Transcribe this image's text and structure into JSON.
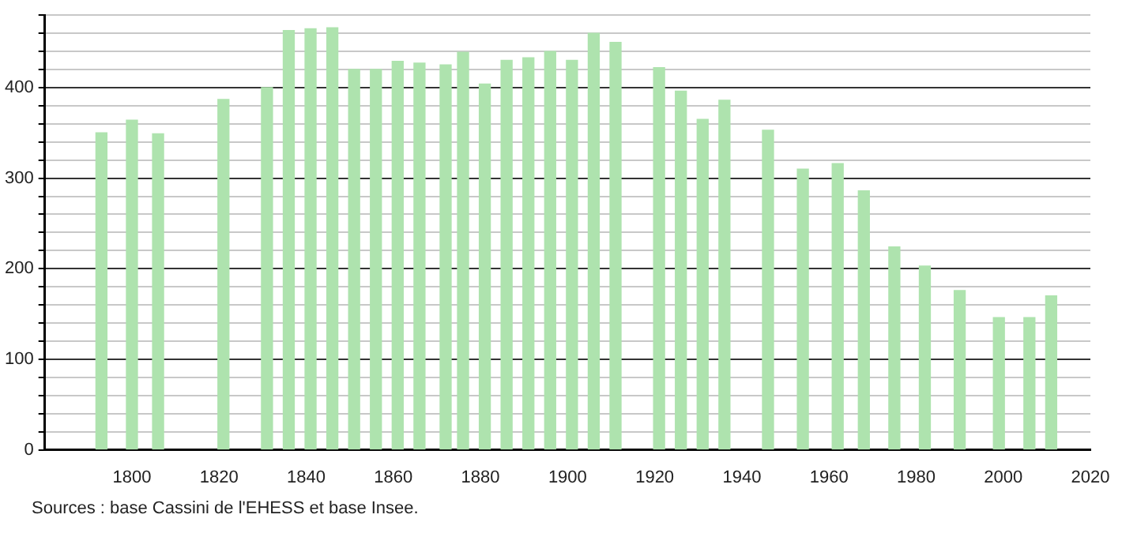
{
  "chart_data": {
    "type": "bar",
    "x": [
      1793,
      1800,
      1806,
      1821,
      1831,
      1836,
      1841,
      1846,
      1851,
      1856,
      1861,
      1866,
      1872,
      1876,
      1881,
      1886,
      1891,
      1896,
      1901,
      1906,
      1911,
      1921,
      1926,
      1931,
      1936,
      1946,
      1954,
      1962,
      1968,
      1975,
      1982,
      1990,
      1999,
      2006,
      2011
    ],
    "values": [
      350,
      364,
      349,
      387,
      400,
      463,
      465,
      466,
      420,
      420,
      429,
      427,
      425,
      439,
      404,
      430,
      433,
      440,
      430,
      460,
      450,
      422,
      396,
      365,
      386,
      353,
      310,
      316,
      286,
      224,
      203,
      176,
      146,
      146,
      170
    ],
    "color": "#aee3ae",
    "xlim": [
      1780,
      2020
    ],
    "xticks": [
      1800,
      1820,
      1840,
      1860,
      1880,
      1900,
      1920,
      1940,
      1960,
      1980,
      2000,
      2020
    ],
    "ylim": [
      0,
      480
    ],
    "yticks": [
      0,
      {
        "value": 20,
        "label": null
      },
      {
        "value": 40,
        "label": null
      },
      {
        "value": 60,
        "label": null
      },
      {
        "value": 80,
        "label": null
      },
      100,
      {
        "value": 120,
        "label": null
      },
      {
        "value": 140,
        "label": null
      },
      {
        "value": 160,
        "label": null
      },
      {
        "value": 180,
        "label": null
      },
      200,
      {
        "value": 220,
        "label": null
      },
      {
        "value": 240,
        "label": null
      },
      {
        "value": 260,
        "label": null
      },
      {
        "value": 280,
        "label": null
      },
      300,
      {
        "value": 320,
        "label": null
      },
      {
        "value": 340,
        "label": null
      },
      {
        "value": 360,
        "label": null
      },
      {
        "value": 380,
        "label": null
      },
      400,
      {
        "value": 420,
        "label": null
      },
      {
        "value": 440,
        "label": null
      },
      {
        "value": 460,
        "label": null
      },
      {
        "value": 480,
        "label": null
      }
    ],
    "grid": "y",
    "legend": false,
    "annotations": [
      "Sources : base Cassini de l'EHESS et base Insee."
    ]
  }
}
